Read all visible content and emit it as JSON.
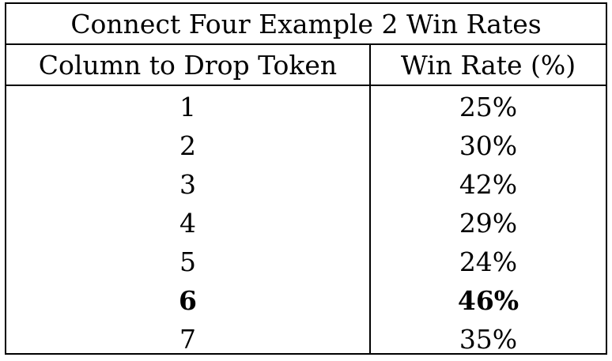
{
  "table": {
    "title": "Connect Four Example 2 Win Rates",
    "headers": [
      "Column to Drop Token",
      "Win Rate (%)"
    ],
    "rows": [
      {
        "column": "1",
        "win_rate": "25%",
        "bold": false
      },
      {
        "column": "2",
        "win_rate": "30%",
        "bold": false
      },
      {
        "column": "3",
        "win_rate": "42%",
        "bold": false
      },
      {
        "column": "4",
        "win_rate": "29%",
        "bold": false
      },
      {
        "column": "5",
        "win_rate": "24%",
        "bold": false
      },
      {
        "column": "6",
        "win_rate": "46%",
        "bold": true
      },
      {
        "column": "7",
        "win_rate": "35%",
        "bold": false
      }
    ]
  }
}
